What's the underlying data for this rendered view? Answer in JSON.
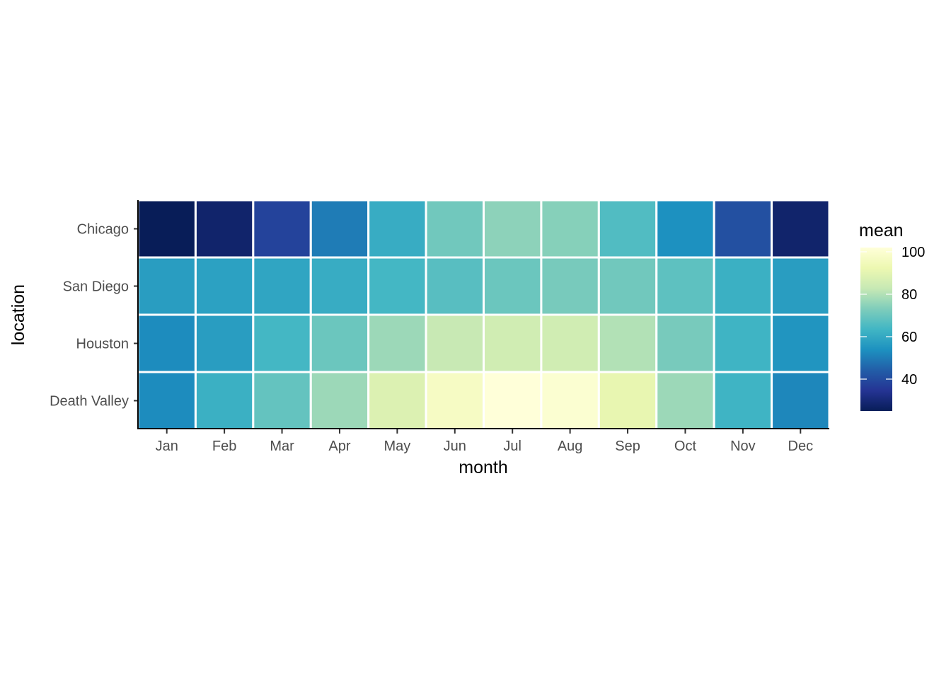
{
  "chart_data": {
    "type": "heatmap",
    "title": "",
    "xlabel": "month",
    "ylabel": "location",
    "x_categories": [
      "Jan",
      "Feb",
      "Mar",
      "Apr",
      "May",
      "Jun",
      "Jul",
      "Aug",
      "Sep",
      "Oct",
      "Nov",
      "Dec"
    ],
    "y_categories": [
      "Chicago",
      "San Diego",
      "Houston",
      "Death Valley"
    ],
    "values": [
      [
        25,
        28,
        38,
        50,
        61,
        71,
        75,
        74,
        66,
        54,
        41,
        28
      ],
      [
        57,
        58,
        59,
        61,
        64,
        67,
        70,
        72,
        71,
        68,
        62,
        57
      ],
      [
        53,
        57,
        64,
        70,
        77,
        83,
        85,
        85,
        80,
        72,
        63,
        55
      ],
      [
        53,
        62,
        69,
        77,
        88,
        97,
        102,
        100,
        91,
        77,
        63,
        52
      ]
    ],
    "legend": {
      "title": "mean",
      "ticks": [
        40,
        60,
        80,
        100
      ],
      "range": [
        25,
        102
      ],
      "placement": "right"
    },
    "colorscale": [
      "#081d58",
      "#253494",
      "#225ea8",
      "#1d91c0",
      "#41b6c4",
      "#7fcdbb",
      "#c7e9b4",
      "#edf8b1",
      "#ffffd9"
    ],
    "grid": false
  }
}
